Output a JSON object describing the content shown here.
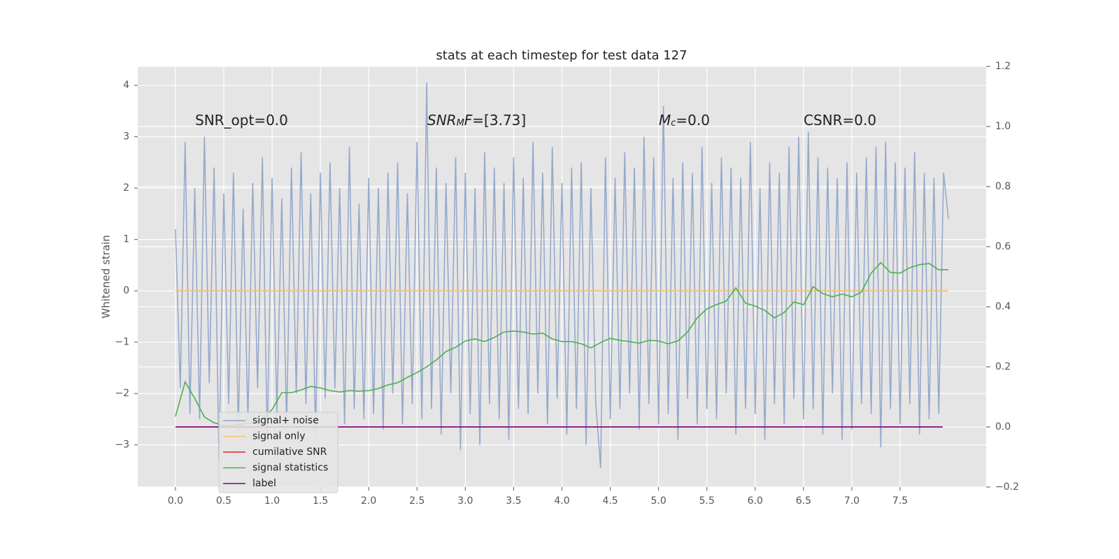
{
  "chart_data": {
    "type": "line",
    "title": "stats at each timestep for test data 127",
    "ylabel": "Whitened strain",
    "xlim": [
      -0.39,
      8.39
    ],
    "ylim": [
      -3.82,
      4.37
    ],
    "y2lim": [
      -0.2,
      1.2
    ],
    "grid": true,
    "legend": "lower left",
    "xticks": [
      {
        "value": 0,
        "label": "0.0"
      },
      {
        "value": 0.5,
        "label": "0.5"
      },
      {
        "value": 1,
        "label": "1.0"
      },
      {
        "value": 1.5,
        "label": "1.5"
      },
      {
        "value": 2,
        "label": "2.0"
      },
      {
        "value": 2.5,
        "label": "2.5"
      },
      {
        "value": 3,
        "label": "3.0"
      },
      {
        "value": 3.5,
        "label": "3.5"
      },
      {
        "value": 4,
        "label": "4.0"
      },
      {
        "value": 4.5,
        "label": "4.5"
      },
      {
        "value": 5,
        "label": "5.0"
      },
      {
        "value": 5.5,
        "label": "5.5"
      },
      {
        "value": 6,
        "label": "6.0"
      },
      {
        "value": 6.5,
        "label": "6.5"
      },
      {
        "value": 7,
        "label": "7.0"
      },
      {
        "value": 7.5,
        "label": "7.5"
      }
    ],
    "yticks": [
      {
        "value": -3,
        "label": "−3"
      },
      {
        "value": -2,
        "label": "−2"
      },
      {
        "value": -1,
        "label": "−1"
      },
      0,
      1,
      2,
      3,
      4
    ],
    "y2ticks": [
      {
        "value": -0.2,
        "label": "−0.2"
      },
      {
        "value": 0,
        "label": "0.0"
      },
      {
        "value": 0.2,
        "label": "0.2"
      },
      {
        "value": 0.4,
        "label": "0.4"
      },
      {
        "value": 0.6,
        "label": "0.6"
      },
      {
        "value": 0.8,
        "label": "0.8"
      },
      {
        "value": 1.0,
        "label": "1.0"
      },
      {
        "value": 1.2,
        "label": "1.2"
      }
    ],
    "annotations": [
      {
        "segments": [
          {
            "text": "SNR_opt=0.0"
          }
        ]
      },
      {
        "segments": [
          {
            "text": "SNR",
            "style": "italic"
          },
          {
            "text": "M",
            "style": "italic-sub"
          },
          {
            "text": "F",
            "style": "italic"
          },
          {
            "text": "=[3.73]"
          }
        ]
      },
      {
        "segments": [
          {
            "text": "M",
            "style": "italic"
          },
          {
            "text": "c",
            "style": "italic-sub"
          },
          {
            "text": "=0.0"
          }
        ]
      },
      {
        "segments": [
          {
            "text": "CSNR=0.0"
          }
        ]
      }
    ],
    "series": [
      {
        "name": "signal+ noise",
        "color": "#8da2c9",
        "x": [
          0,
          0.05,
          0.1,
          0.15,
          0.2,
          0.25,
          0.3,
          0.35,
          0.4,
          0.45,
          0.5,
          0.55,
          0.6,
          0.65,
          0.7,
          0.75,
          0.8,
          0.85,
          0.9,
          0.95,
          1,
          1.05,
          1.1,
          1.15,
          1.2,
          1.25,
          1.3,
          1.35,
          1.4,
          1.45,
          1.5,
          1.55,
          1.6,
          1.65,
          1.7,
          1.75,
          1.8,
          1.85,
          1.9,
          1.95,
          2,
          2.05,
          2.1,
          2.15,
          2.2,
          2.25,
          2.3,
          2.35,
          2.4,
          2.45,
          2.5,
          2.55,
          2.6,
          2.65,
          2.7,
          2.75,
          2.8,
          2.85,
          2.9,
          2.95,
          3,
          3.05,
          3.1,
          3.15,
          3.2,
          3.25,
          3.3,
          3.35,
          3.4,
          3.45,
          3.5,
          3.55,
          3.6,
          3.65,
          3.7,
          3.75,
          3.8,
          3.85,
          3.9,
          3.95,
          4,
          4.05,
          4.1,
          4.15,
          4.2,
          4.25,
          4.3,
          4.35,
          4.4,
          4.45,
          4.5,
          4.55,
          4.6,
          4.65,
          4.7,
          4.75,
          4.8,
          4.85,
          4.9,
          4.95,
          5,
          5.05,
          5.1,
          5.15,
          5.2,
          5.25,
          5.3,
          5.35,
          5.4,
          5.45,
          5.5,
          5.55,
          5.6,
          5.65,
          5.7,
          5.75,
          5.8,
          5.85,
          5.9,
          5.95,
          6,
          6.05,
          6.1,
          6.15,
          6.2,
          6.25,
          6.3,
          6.35,
          6.4,
          6.45,
          6.5,
          6.55,
          6.6,
          6.65,
          6.7,
          6.75,
          6.8,
          6.85,
          6.9,
          6.95,
          7,
          7.05,
          7.1,
          7.15,
          7.2,
          7.25,
          7.3,
          7.35,
          7.4,
          7.45,
          7.5,
          7.55,
          7.6,
          7.65,
          7.7,
          7.75,
          7.8,
          7.85,
          7.9,
          7.95,
          8
        ],
        "values": [
          1.2,
          -1.9,
          2.9,
          -2.4,
          2.0,
          -2.5,
          3.0,
          -1.8,
          2.4,
          -3.3,
          1.9,
          -2.2,
          2.3,
          -2.7,
          1.6,
          -2.5,
          2.1,
          -1.9,
          2.6,
          -2.9,
          2.2,
          -2.4,
          1.8,
          -2.6,
          2.4,
          -2.0,
          2.7,
          -2.2,
          1.9,
          -2.8,
          2.3,
          -2.1,
          2.5,
          -1.9,
          2.0,
          -2.6,
          2.8,
          -2.3,
          1.7,
          -2.5,
          2.2,
          -2.4,
          2.0,
          -2.7,
          2.3,
          -2.0,
          2.5,
          -2.6,
          1.9,
          -2.2,
          2.9,
          -2.5,
          4.05,
          -2.3,
          2.4,
          -2.8,
          2.1,
          -2.0,
          2.6,
          -3.1,
          2.3,
          -2.4,
          2.0,
          -3.0,
          2.7,
          -2.2,
          2.4,
          -2.5,
          2.1,
          -2.9,
          2.6,
          -2.3,
          2.2,
          -2.4,
          2.9,
          -2.0,
          2.3,
          -2.6,
          2.8,
          -2.1,
          2.1,
          -2.8,
          2.4,
          -2.3,
          2.5,
          -3.0,
          2.0,
          -2.2,
          -3.45,
          2.6,
          -2.5,
          2.2,
          -2.3,
          2.7,
          -2.0,
          2.4,
          -2.7,
          3.0,
          -2.2,
          2.6,
          -2.6,
          3.6,
          -2.4,
          2.2,
          -2.9,
          2.5,
          -2.1,
          2.3,
          -2.6,
          2.8,
          -2.3,
          2.1,
          -2.5,
          2.6,
          -2.0,
          2.4,
          -2.8,
          2.2,
          -2.3,
          2.9,
          -2.4,
          2.0,
          -2.9,
          2.5,
          -2.2,
          2.3,
          -2.6,
          2.8,
          -2.1,
          3.0,
          -2.5,
          3.1,
          -2.3,
          2.6,
          -2.8,
          2.4,
          -2.0,
          2.2,
          -2.9,
          2.5,
          -2.7,
          2.3,
          -2.2,
          2.6,
          -2.4,
          2.8,
          -3.05,
          2.9,
          -2.3,
          2.5,
          -2.6,
          2.4,
          -2.2,
          2.7,
          -2.8,
          2.3,
          -2.5,
          2.2,
          -2.4,
          2.3,
          1.4
        ]
      },
      {
        "name": "signal only",
        "color": "#f5c26b",
        "x": [
          0,
          8
        ],
        "values": [
          0,
          0
        ]
      },
      {
        "name": "cumilative SNR",
        "color": "#d62728",
        "axis": "y2",
        "x": [
          0,
          7.94
        ],
        "values": [
          0,
          0
        ]
      },
      {
        "name": "signal statistics",
        "color": "#4caf50",
        "axis": "y2",
        "x": [
          0,
          0.1,
          0.2,
          0.3,
          0.4,
          0.5,
          0.6,
          0.7,
          0.8,
          0.9,
          1,
          1.1,
          1.2,
          1.3,
          1.4,
          1.5,
          1.6,
          1.7,
          1.8,
          1.9,
          2,
          2.1,
          2.2,
          2.3,
          2.4,
          2.5,
          2.6,
          2.7,
          2.8,
          2.9,
          3,
          3.1,
          3.2,
          3.3,
          3.4,
          3.5,
          3.6,
          3.7,
          3.8,
          3.9,
          4,
          4.1,
          4.2,
          4.3,
          4.4,
          4.5,
          4.6,
          4.7,
          4.8,
          4.9,
          5,
          5.1,
          5.2,
          5.3,
          5.4,
          5.5,
          5.6,
          5.7,
          5.8,
          5.9,
          6,
          6.1,
          6.2,
          6.3,
          6.4,
          6.5,
          6.6,
          6.7,
          6.8,
          6.9,
          7,
          7.1,
          7.2,
          7.3,
          7.4,
          7.5,
          7.6,
          7.7,
          7.8,
          7.9,
          8
        ],
        "values": [
          0.035,
          0.15,
          0.095,
          0.033,
          0.014,
          0.005,
          0.005,
          0.01,
          0.015,
          0.025,
          0.058,
          0.114,
          0.114,
          0.123,
          0.135,
          0.13,
          0.121,
          0.116,
          0.121,
          0.119,
          0.121,
          0.128,
          0.14,
          0.147,
          0.165,
          0.181,
          0.2,
          0.223,
          0.251,
          0.265,
          0.286,
          0.293,
          0.284,
          0.298,
          0.316,
          0.319,
          0.316,
          0.309,
          0.312,
          0.293,
          0.284,
          0.284,
          0.277,
          0.263,
          0.281,
          0.295,
          0.288,
          0.284,
          0.279,
          0.288,
          0.286,
          0.277,
          0.286,
          0.316,
          0.363,
          0.393,
          0.407,
          0.419,
          0.463,
          0.412,
          0.402,
          0.388,
          0.363,
          0.381,
          0.416,
          0.407,
          0.467,
          0.444,
          0.433,
          0.442,
          0.433,
          0.449,
          0.512,
          0.547,
          0.514,
          0.512,
          0.53,
          0.54,
          0.544,
          0.523,
          0.523
        ]
      },
      {
        "name": "label",
        "color": "#800080",
        "axis": "y2",
        "x": [
          0,
          7.94
        ],
        "values": [
          0,
          0
        ]
      }
    ]
  }
}
